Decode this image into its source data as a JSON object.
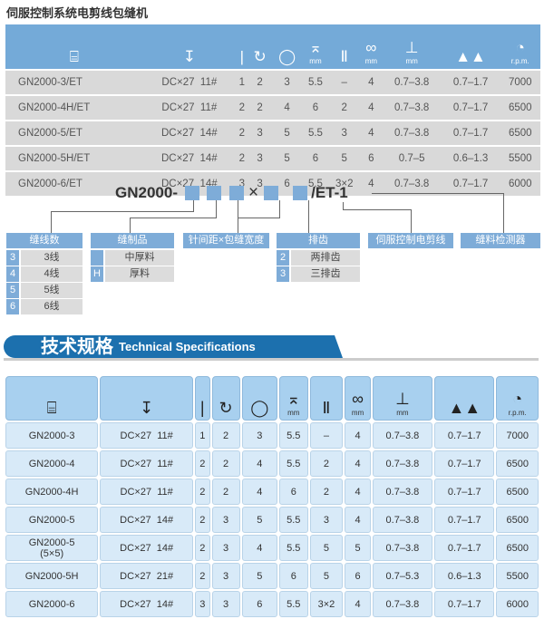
{
  "title": "伺服控制系统电剪线包缝机",
  "icons": [
    "sewing-machine-icon",
    "needle-spacing-icon",
    "needle-icon",
    "looper-icon",
    "thread-cone-icon",
    "stitch-height-icon",
    "feed-dog-icon",
    "overlock-width-icon",
    "stitch-length-icon",
    "differential-feed-icon",
    "speed-icon"
  ],
  "icon_glyphs": [
    "⌸",
    "↧",
    "|",
    "↻",
    "◯",
    "⌅",
    "Ⅱ",
    "∞",
    "⊥",
    "▲▲",
    "◔"
  ],
  "header_units": [
    "",
    "",
    "",
    "",
    "",
    "mm",
    "",
    "mm",
    "mm",
    "",
    "r.p.m."
  ],
  "table1": [
    [
      "GN2000-3/ET",
      "DC×27  11#",
      "1",
      "2",
      "3",
      "5.5",
      "–",
      "4",
      "0.7–3.8",
      "0.7–1.7",
      "7000"
    ],
    [
      "GN2000-4H/ET",
      "DC×27  11#",
      "2",
      "2",
      "4",
      "6",
      "2",
      "4",
      "0.7–3.8",
      "0.7–1.7",
      "6500"
    ],
    [
      "GN2000-5/ET",
      "DC×27  14#",
      "2",
      "3",
      "5",
      "5.5",
      "3",
      "4",
      "0.7–3.8",
      "0.7–1.7",
      "6500"
    ],
    [
      "GN2000-5H/ET",
      "DC×27  14#",
      "2",
      "3",
      "5",
      "6",
      "5",
      "6",
      "0.7–5",
      "0.6–1.3",
      "5500"
    ],
    [
      "GN2000-6/ET",
      "DC×27  14#",
      "3",
      "3",
      "6",
      "5.5",
      "3×2",
      "4",
      "0.7–3.8",
      "0.7–1.7",
      "6000"
    ]
  ],
  "code": {
    "prefix": "GN2000-",
    "times": "×",
    "suffix": "/ET-1"
  },
  "labels": [
    "缝线数",
    "缝制品",
    "针间距×包缝宽度",
    "排齿",
    "伺服控制电剪线",
    "缝料检测器"
  ],
  "threads": [
    [
      "3",
      "3线"
    ],
    [
      "4",
      "4线"
    ],
    [
      "5",
      "5线"
    ],
    [
      "6",
      "6线"
    ]
  ],
  "material": [
    [
      "",
      "中厚料"
    ],
    [
      "H",
      "厚料"
    ]
  ],
  "rows_teeth": [
    [
      "2",
      "两排齿"
    ],
    [
      "3",
      "三排齿"
    ]
  ],
  "section": {
    "title": "技术规格",
    "subtitle": "Technical Specifications"
  },
  "table2": [
    [
      "GN2000-3",
      "DC×27  11#",
      "1",
      "2",
      "3",
      "5.5",
      "–",
      "4",
      "0.7–3.8",
      "0.7–1.7",
      "7000"
    ],
    [
      "GN2000-4",
      "DC×27  11#",
      "2",
      "2",
      "4",
      "5.5",
      "2",
      "4",
      "0.7–3.8",
      "0.7–1.7",
      "6500"
    ],
    [
      "GN2000-4H",
      "DC×27  11#",
      "2",
      "2",
      "4",
      "6",
      "2",
      "4",
      "0.7–3.8",
      "0.7–1.7",
      "6500"
    ],
    [
      "GN2000-5",
      "DC×27  14#",
      "2",
      "3",
      "5",
      "5.5",
      "3",
      "4",
      "0.7–3.8",
      "0.7–1.7",
      "6500"
    ],
    [
      "GN2000-5\n(5×5)",
      "DC×27  14#",
      "2",
      "3",
      "4",
      "5.5",
      "5",
      "5",
      "0.7–3.8",
      "0.7–1.7",
      "6500"
    ],
    [
      "GN2000-5H",
      "DC×27  21#",
      "2",
      "3",
      "5",
      "6",
      "5",
      "6",
      "0.7–5.3",
      "0.6–1.3",
      "5500"
    ],
    [
      "GN2000-6",
      "DC×27  14#",
      "3",
      "3",
      "6",
      "5.5",
      "3×2",
      "4",
      "0.7–3.8",
      "0.7–1.7",
      "6000"
    ]
  ]
}
